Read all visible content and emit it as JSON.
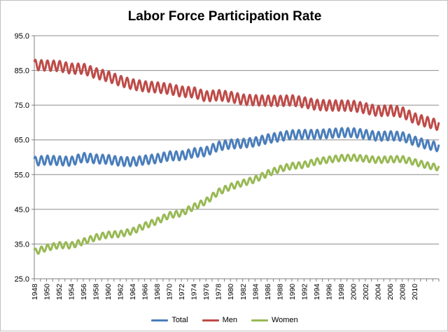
{
  "chart_data": {
    "type": "line",
    "title": "Labor Force Participation Rate",
    "xlabel": "",
    "ylabel": "",
    "xlim": [
      1948,
      2014
    ],
    "ylim": [
      25,
      95
    ],
    "y_ticks": [
      "25.0",
      "35.0",
      "45.0",
      "55.0",
      "65.0",
      "75.0",
      "85.0",
      "95.0"
    ],
    "y_tick_values": [
      25,
      35,
      45,
      55,
      65,
      75,
      85,
      95
    ],
    "x_ticks": [
      "1948",
      "1950",
      "1952",
      "1954",
      "1956",
      "1958",
      "1960",
      "1962",
      "1964",
      "1966",
      "1968",
      "1970",
      "1972",
      "1974",
      "1976",
      "1978",
      "1980",
      "1982",
      "1984",
      "1986",
      "1988",
      "1990",
      "1992",
      "1994",
      "1996",
      "1998",
      "2000",
      "2002",
      "2004",
      "2006",
      "2008",
      "2010"
    ],
    "x_tick_values": [
      1948,
      1950,
      1952,
      1954,
      1956,
      1958,
      1960,
      1962,
      1964,
      1966,
      1968,
      1970,
      1972,
      1974,
      1976,
      1978,
      1980,
      1982,
      1984,
      1986,
      1988,
      1990,
      1992,
      1994,
      1996,
      1998,
      2000,
      2002,
      2004,
      2006,
      2008,
      2010
    ],
    "grid": true,
    "legend_position": "bottom",
    "seasonal_amplitude": {
      "Total": 1.3,
      "Men": 1.5,
      "Women": 0.9
    },
    "series": [
      {
        "name": "Total",
        "color": "#4a7ebb",
        "x": [
          1948,
          1950,
          1952,
          1954,
          1956,
          1958,
          1960,
          1962,
          1964,
          1966,
          1968,
          1970,
          1972,
          1974,
          1976,
          1978,
          1980,
          1982,
          1984,
          1986,
          1988,
          1990,
          1992,
          1994,
          1996,
          1998,
          2000,
          2002,
          2004,
          2006,
          2008,
          2010,
          2012,
          2014
        ],
        "values": [
          58.8,
          59.2,
          59.0,
          58.8,
          60.0,
          59.5,
          59.4,
          58.8,
          58.7,
          59.2,
          59.6,
          60.4,
          60.4,
          61.3,
          61.6,
          63.2,
          63.8,
          64.0,
          64.4,
          65.3,
          65.9,
          66.5,
          66.6,
          66.6,
          66.8,
          67.1,
          67.1,
          66.6,
          66.0,
          66.2,
          66.0,
          64.7,
          63.7,
          62.9
        ]
      },
      {
        "name": "Men",
        "color": "#be4b48",
        "x": [
          1948,
          1950,
          1952,
          1954,
          1956,
          1958,
          1960,
          1962,
          1964,
          1966,
          1968,
          1970,
          1972,
          1974,
          1976,
          1978,
          1980,
          1982,
          1984,
          1986,
          1988,
          1990,
          1992,
          1994,
          1996,
          1998,
          2000,
          2002,
          2004,
          2006,
          2008,
          2010,
          2012,
          2014
        ],
        "values": [
          86.6,
          86.4,
          86.3,
          85.5,
          85.5,
          84.2,
          83.3,
          82.0,
          81.0,
          80.4,
          80.1,
          79.7,
          78.9,
          78.7,
          77.5,
          77.9,
          77.4,
          76.6,
          76.4,
          76.3,
          76.2,
          76.4,
          75.8,
          75.1,
          74.9,
          74.9,
          74.8,
          74.1,
          73.3,
          73.5,
          73.0,
          71.2,
          70.2,
          69.2
        ]
      },
      {
        "name": "Women",
        "color": "#98b954",
        "x": [
          1948,
          1950,
          1952,
          1954,
          1956,
          1958,
          1960,
          1962,
          1964,
          1966,
          1968,
          1970,
          1972,
          1974,
          1976,
          1978,
          1980,
          1982,
          1984,
          1986,
          1988,
          1990,
          1992,
          1994,
          1996,
          1998,
          2000,
          2002,
          2004,
          2006,
          2008,
          2010,
          2012,
          2014
        ],
        "values": [
          32.7,
          33.9,
          34.7,
          34.6,
          35.7,
          36.9,
          37.7,
          37.9,
          38.7,
          40.3,
          41.6,
          43.3,
          43.9,
          45.7,
          47.3,
          50.0,
          51.5,
          52.6,
          53.6,
          55.3,
          56.6,
          57.5,
          57.8,
          58.8,
          59.3,
          59.8,
          59.9,
          59.6,
          59.2,
          59.4,
          59.5,
          58.6,
          57.7,
          57.0
        ]
      }
    ]
  }
}
